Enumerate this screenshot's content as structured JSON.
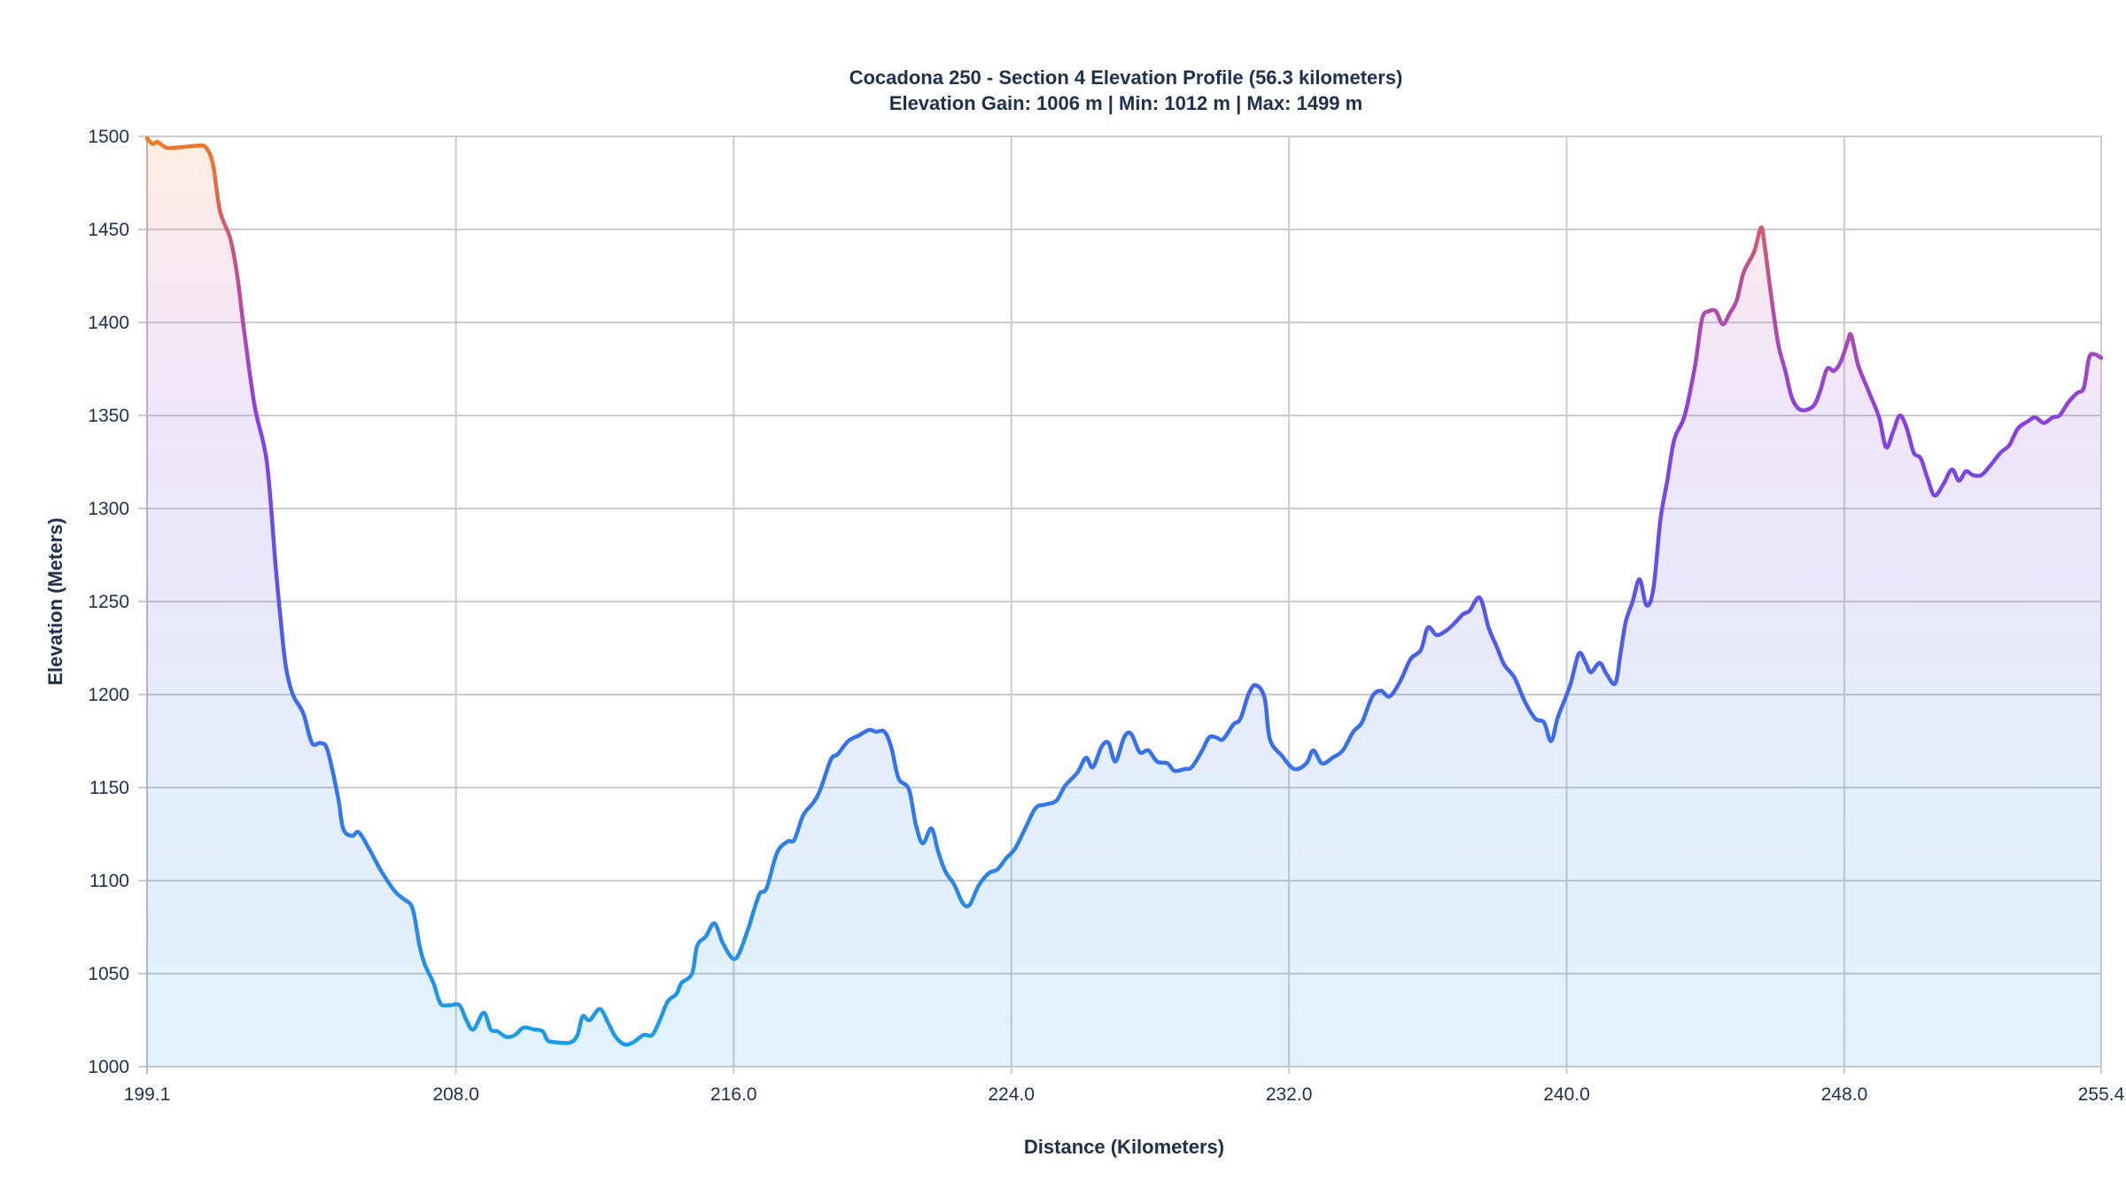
{
  "chart_data": {
    "type": "area",
    "title": "Cocadona 250 - Section 4 Elevation Profile (56.3 kilometers)",
    "subtitle": "Elevation Gain: 1006 m | Min: 1012 m | Max: 1499 m",
    "xlabel": "Distance (Kilometers)",
    "ylabel": "Elevation (Meters)",
    "xlim": [
      199.1,
      255.4
    ],
    "ylim": [
      1000,
      1500
    ],
    "xticks": [
      "199.1",
      "208.0",
      "216.0",
      "224.0",
      "232.0",
      "240.0",
      "248.0",
      "255.4"
    ],
    "yticks": [
      "1000",
      "1050",
      "1100",
      "1150",
      "1200",
      "1250",
      "1300",
      "1350",
      "1400",
      "1450",
      "1500"
    ],
    "grid": true,
    "line_gradient_by_elevation": {
      "high": "#f47a20",
      "upper": "#c4508c",
      "mid": "#8a40e0",
      "lower": "#3a6cea",
      "low": "#1aa0e6"
    },
    "x": [
      199.1,
      199.26,
      199.4,
      199.65,
      199.95,
      200.55,
      200.8,
      201.0,
      201.2,
      201.5,
      201.7,
      201.9,
      202.2,
      202.55,
      202.8,
      202.95,
      203.1,
      203.3,
      203.6,
      203.85,
      204.1,
      204.3,
      204.6,
      204.75,
      205.0,
      205.2,
      205.5,
      205.85,
      206.25,
      206.5,
      206.75,
      206.95,
      207.1,
      207.35,
      207.55,
      207.8,
      208.1,
      208.3,
      208.5,
      208.8,
      209.0,
      209.2,
      209.45,
      209.7,
      209.95,
      210.25,
      210.5,
      210.65,
      210.95,
      211.3,
      211.5,
      211.65,
      211.85,
      212.15,
      212.4,
      212.6,
      212.85,
      213.1,
      213.4,
      213.65,
      213.85,
      214.1,
      214.35,
      214.5,
      214.8,
      214.95,
      215.2,
      215.45,
      215.7,
      216.05,
      216.4,
      216.55,
      216.75,
      216.95,
      217.25,
      217.55,
      217.75,
      218.0,
      218.3,
      218.5,
      218.8,
      219.0,
      219.3,
      219.6,
      219.9,
      220.1,
      220.35,
      220.55,
      220.75,
      221.05,
      221.25,
      221.45,
      221.7,
      221.9,
      222.1,
      222.35,
      222.6,
      222.8,
      223.05,
      223.35,
      223.6,
      223.85,
      224.1,
      224.4,
      224.7,
      225.0,
      225.3,
      225.55,
      225.9,
      226.15,
      226.35,
      226.6,
      226.8,
      227.0,
      227.25,
      227.45,
      227.7,
      227.95,
      228.2,
      228.5,
      228.7,
      229.0,
      229.2,
      229.5,
      229.7,
      229.9,
      230.1,
      230.4,
      230.6,
      230.85,
      231.05,
      231.3,
      231.45,
      231.8,
      232.15,
      232.5,
      232.7,
      232.95,
      233.25,
      233.55,
      233.85,
      234.1,
      234.4,
      234.65,
      234.9,
      235.2,
      235.5,
      235.8,
      236.0,
      236.25,
      236.5,
      236.75,
      237.0,
      237.2,
      237.5,
      237.75,
      238.0,
      238.2,
      238.5,
      238.8,
      239.1,
      239.35,
      239.55,
      239.75,
      240.1,
      240.35,
      240.55,
      240.7,
      240.95,
      241.15,
      241.4,
      241.55,
      241.7,
      241.9,
      242.1,
      242.3,
      242.5,
      242.7,
      242.9,
      243.1,
      243.4,
      243.7,
      243.9,
      244.1,
      244.3,
      244.5,
      244.7,
      244.9,
      245.1,
      245.4,
      245.6,
      245.7,
      245.9,
      246.1,
      246.3,
      246.5,
      246.75,
      247.1,
      247.3,
      247.5,
      247.7,
      247.9,
      248.1,
      248.2,
      248.4,
      248.7,
      249.0,
      249.2,
      249.4,
      249.6,
      249.8,
      250.0,
      250.2,
      250.4,
      250.6,
      250.85,
      251.1,
      251.3,
      251.5,
      251.7,
      251.95,
      252.2,
      252.5,
      252.75,
      253.0,
      253.3,
      253.5,
      253.75,
      254.0,
      254.2,
      254.45,
      254.7,
      254.9,
      255.05,
      255.2,
      255.4
    ],
    "y": [
      1499,
      1496,
      1497,
      1494,
      1494,
      1495,
      1494,
      1485,
      1460,
      1445,
      1425,
      1395,
      1355,
      1325,
      1270,
      1240,
      1215,
      1200,
      1190,
      1174,
      1174,
      1170,
      1145,
      1128,
      1124,
      1126,
      1117,
      1105,
      1094,
      1090,
      1085,
      1065,
      1055,
      1045,
      1034,
      1033,
      1033,
      1025,
      1020,
      1029,
      1020,
      1019,
      1016,
      1017,
      1021,
      1020,
      1019,
      1014,
      1013,
      1013,
      1017,
      1027,
      1025,
      1031,
      1023,
      1016,
      1012,
      1013,
      1017,
      1017,
      1024,
      1035,
      1039,
      1045,
      1050,
      1065,
      1070,
      1077,
      1066,
      1058,
      1073,
      1082,
      1093,
      1096,
      1115,
      1121,
      1122,
      1135,
      1142,
      1149,
      1165,
      1168,
      1175,
      1178,
      1181,
      1180,
      1180,
      1171,
      1155,
      1149,
      1130,
      1120,
      1128,
      1115,
      1105,
      1098,
      1088,
      1087,
      1097,
      1104,
      1106,
      1112,
      1117,
      1128,
      1139,
      1141,
      1143,
      1151,
      1158,
      1166,
      1161,
      1172,
      1174,
      1164,
      1177,
      1179,
      1169,
      1170,
      1164,
      1163,
      1159,
      1160,
      1161,
      1170,
      1177,
      1177,
      1176,
      1184,
      1187,
      1201,
      1205,
      1198,
      1176,
      1167,
      1160,
      1163,
      1170,
      1163,
      1166,
      1170,
      1180,
      1185,
      1199,
      1202,
      1199,
      1207,
      1219,
      1224,
      1236,
      1232,
      1234,
      1238,
      1243,
      1245,
      1252,
      1236,
      1225,
      1216,
      1209,
      1196,
      1187,
      1185,
      1175,
      1188,
      1205,
      1222,
      1217,
      1212,
      1217,
      1211,
      1206,
      1222,
      1239,
      1250,
      1262,
      1248,
      1257,
      1294,
      1315,
      1337,
      1350,
      1377,
      1402,
      1406,
      1406,
      1399,
      1405,
      1412,
      1427,
      1438,
      1451,
      1442,
      1413,
      1388,
      1374,
      1359,
      1353,
      1355,
      1363,
      1375,
      1374,
      1379,
      1390,
      1393,
      1377,
      1363,
      1349,
      1333,
      1341,
      1350,
      1343,
      1330,
      1327,
      1316,
      1307,
      1313,
      1321,
      1315,
      1320,
      1318,
      1318,
      1323,
      1330,
      1334,
      1343,
      1347,
      1349,
      1346,
      1349,
      1350,
      1357,
      1362,
      1365,
      1381,
      1383,
      1381
    ]
  }
}
